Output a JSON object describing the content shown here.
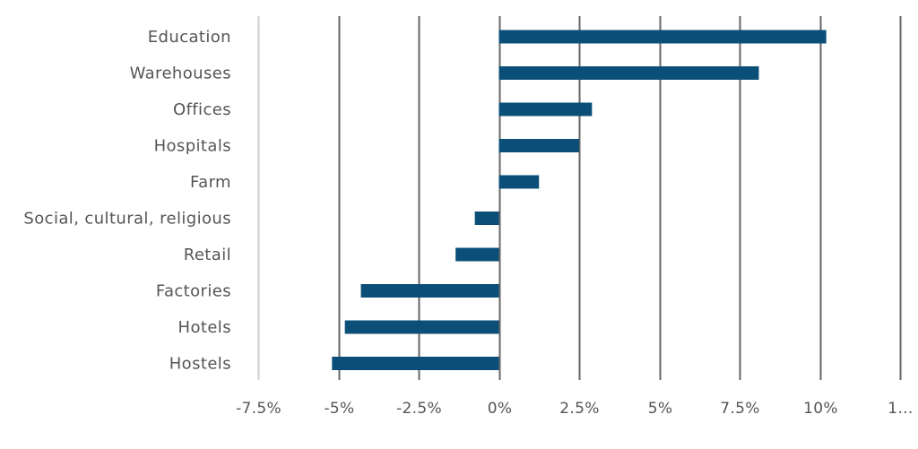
{
  "chart_data": {
    "type": "bar",
    "orientation": "horizontal",
    "categories": [
      "Education",
      "Warehouses",
      "Offices",
      "Hospitals",
      "Farm",
      "Social, cultural, religious",
      "Retail",
      "Factories",
      "Hotels",
      "Hostels"
    ],
    "series": [
      {
        "values": [
          10.2,
          8.1,
          2.9,
          2.5,
          1.25,
          -0.75,
          -1.35,
          -4.3,
          -4.8,
          -5.2
        ]
      }
    ],
    "x_ticks": [
      "-7.5%",
      "-5%",
      "-2.5%",
      "0%",
      "2.5%",
      "5%",
      "7.5%",
      "10%",
      "1…"
    ],
    "x_tick_values": [
      -7.5,
      -5,
      -2.5,
      0,
      2.5,
      5,
      7.5,
      10,
      12.5
    ],
    "xlim": [
      -7.5,
      12.5
    ],
    "grid": true,
    "bar_color": "#0b4f78"
  }
}
